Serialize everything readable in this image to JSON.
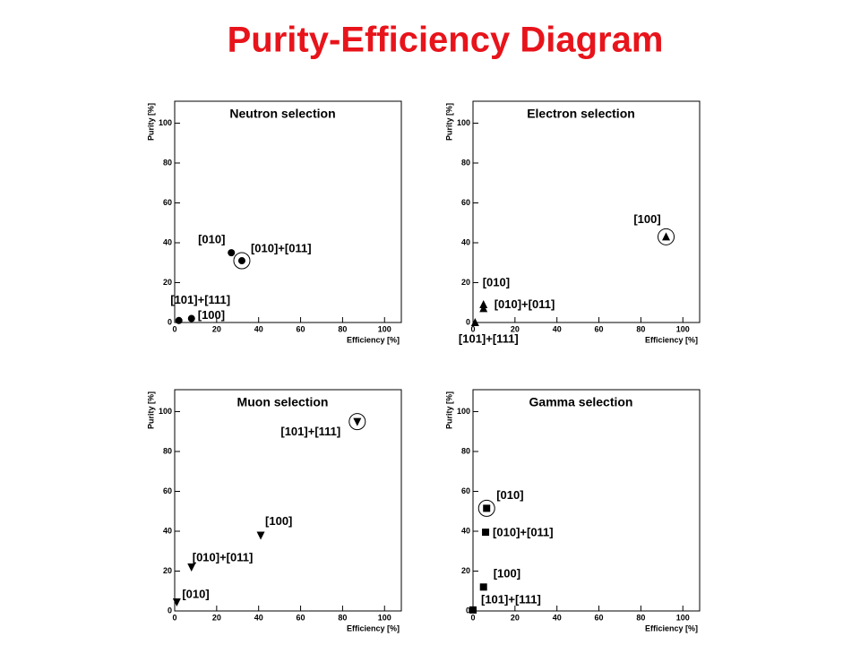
{
  "title": "Purity-Efficiency Diagram",
  "chart_data": [
    {
      "type": "scatter",
      "title": "Neutron selection",
      "x_label": "Efficiency [%]",
      "y_label": "Purity [%]",
      "xlim": [
        0,
        108
      ],
      "ylim": [
        0,
        111
      ],
      "xticks": [
        0,
        20,
        40,
        60,
        80,
        100
      ],
      "yticks": [
        0,
        20,
        40,
        60,
        80,
        100
      ],
      "marker": "circle",
      "color": "#000000",
      "labels": [
        "[010]",
        "[010]+[011]",
        "[100]",
        "[101]+[111]"
      ],
      "x": [
        27,
        32,
        8,
        2
      ],
      "y": [
        35,
        31,
        2,
        1
      ],
      "highlight": [
        false,
        true,
        false,
        false
      ]
    },
    {
      "type": "scatter",
      "title": "Electron selection",
      "x_label": "Efficiency [%]",
      "y_label": "Purity [%]",
      "xlim": [
        0,
        108
      ],
      "ylim": [
        0,
        111
      ],
      "xticks": [
        0,
        20,
        40,
        60,
        80,
        100
      ],
      "yticks": [
        0,
        20,
        40,
        60,
        80,
        100
      ],
      "marker": "triangle-up",
      "color": "#000000",
      "labels": [
        "[100]",
        "[010]",
        "[010]+[011]",
        "[101]+[111]"
      ],
      "x": [
        92,
        5,
        5,
        1
      ],
      "y": [
        43,
        9,
        7,
        0
      ],
      "highlight": [
        true,
        false,
        false,
        false
      ]
    },
    {
      "type": "scatter",
      "title": "Muon selection",
      "x_label": "Efficiency [%]",
      "y_label": "Purity [%]",
      "xlim": [
        0,
        108
      ],
      "ylim": [
        0,
        111
      ],
      "xticks": [
        0,
        20,
        40,
        60,
        80,
        100
      ],
      "yticks": [
        0,
        20,
        40,
        60,
        80,
        100
      ],
      "marker": "triangle-down",
      "color": "#000000",
      "labels": [
        "[101]+[111]",
        "[100]",
        "[010]+[011]",
        "[010]"
      ],
      "x": [
        87,
        41,
        8,
        1
      ],
      "y": [
        95,
        38,
        22,
        4.5
      ],
      "highlight": [
        true,
        false,
        false,
        false
      ]
    },
    {
      "type": "scatter",
      "title": "Gamma selection",
      "x_label": "Efficiency [%]",
      "y_label": "Purity [%]",
      "xlim": [
        0,
        108
      ],
      "ylim": [
        0,
        111
      ],
      "xticks": [
        0,
        20,
        40,
        60,
        80,
        100
      ],
      "yticks": [
        0,
        20,
        40,
        60,
        80,
        100
      ],
      "marker": "square",
      "color": "#000000",
      "labels": [
        "[010]",
        "[010]+[011]",
        "[100]",
        "[101]+[111]"
      ],
      "x": [
        6.5,
        6,
        5,
        0
      ],
      "y": [
        51.5,
        39.5,
        12,
        0.5
      ],
      "highlight": [
        true,
        false,
        false,
        false
      ]
    }
  ]
}
